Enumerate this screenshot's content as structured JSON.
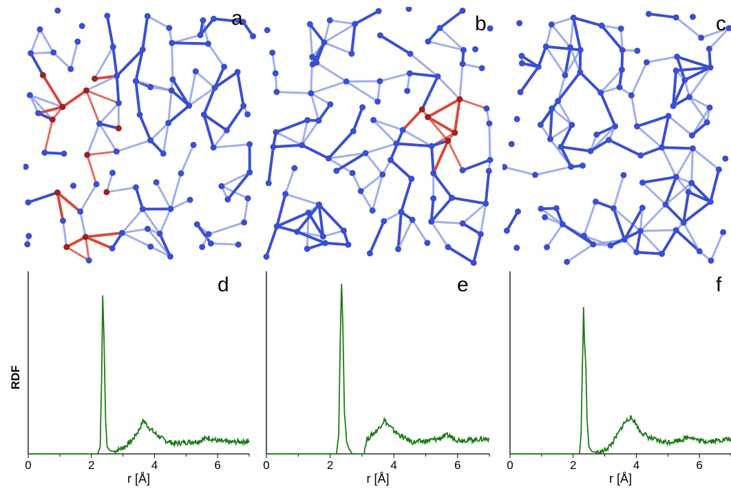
{
  "panels": {
    "a": "a",
    "b": "b",
    "c": "c",
    "d": "d",
    "e": "e",
    "f": "f"
  },
  "structure_colors": {
    "network": "#3a4fd0",
    "network_back": "#8a9ae8",
    "highlight": "#d84a3a",
    "highlight_dark": "#a02020"
  },
  "chart_data": [
    {
      "type": "line",
      "panel": "d",
      "xlabel": "r [Å]",
      "ylabel": "RDF",
      "xlim": [
        0,
        7
      ],
      "xticks": [
        "0",
        "2",
        "4",
        "6"
      ],
      "color": "#1a7a14",
      "grid": false,
      "series": [
        {
          "x": [
            0,
            2.2,
            2.28,
            2.33,
            2.36,
            2.4,
            2.45,
            2.5,
            2.58,
            2.7,
            2.9,
            3.1,
            3.3,
            3.5,
            3.65,
            3.75,
            3.85,
            4.0,
            4.3,
            4.6,
            5.0,
            5.4,
            5.7,
            6.0,
            6.4,
            7.0
          ],
          "y": [
            0,
            0,
            0.3,
            3.5,
            6.8,
            5.0,
            1.5,
            0.3,
            0.15,
            0.1,
            0.2,
            0.35,
            0.6,
            1.0,
            1.45,
            1.25,
            1.1,
            0.9,
            0.6,
            0.45,
            0.5,
            0.55,
            0.7,
            0.55,
            0.5,
            0.55
          ]
        }
      ]
    },
    {
      "type": "line",
      "panel": "e",
      "xlabel": "r [Å]",
      "ylabel": "",
      "xlim": [
        0,
        7
      ],
      "xticks": [
        "0",
        "2",
        "4",
        "6"
      ],
      "color": "#1a7a14",
      "grid": false,
      "series": [
        {
          "x": [
            0,
            2.2,
            2.27,
            2.32,
            2.36,
            2.4,
            2.45,
            2.52,
            2.6,
            2.7,
            2.9,
            3.05,
            3.15,
            3.3,
            3.5,
            3.7,
            3.85,
            4.0,
            4.3,
            4.6,
            5.0,
            5.4,
            5.7,
            6.0,
            6.4,
            7.0
          ],
          "y": [
            0,
            0,
            0.8,
            5.0,
            7.3,
            5.5,
            1.8,
            0.5,
            0.2,
            0,
            0,
            0,
            0.6,
            0.8,
            1.05,
            1.45,
            1.2,
            1.0,
            0.7,
            0.5,
            0.55,
            0.65,
            0.8,
            0.6,
            0.6,
            0.65
          ]
        }
      ]
    },
    {
      "type": "line",
      "panel": "f",
      "xlabel": "r [Å]",
      "ylabel": "",
      "xlim": [
        0,
        7
      ],
      "xticks": [
        "0",
        "2",
        "4",
        "6"
      ],
      "color": "#1a7a14",
      "grid": false,
      "series": [
        {
          "x": [
            0,
            2.2,
            2.25,
            2.3,
            2.33,
            2.36,
            2.4,
            2.44,
            2.5,
            2.6,
            2.8,
            3.0,
            3.2,
            3.4,
            3.6,
            3.8,
            3.95,
            4.1,
            4.4,
            4.7,
            5.0,
            5.4,
            5.7,
            6.0,
            6.4,
            7.0
          ],
          "y": [
            0,
            0,
            0.8,
            4.3,
            6.3,
            4.8,
            3.8,
            1.5,
            0.3,
            0.1,
            0.05,
            0.15,
            0.4,
            0.8,
            1.3,
            1.55,
            1.4,
            1.0,
            0.7,
            0.55,
            0.5,
            0.6,
            0.75,
            0.55,
            0.55,
            0.65
          ]
        }
      ]
    }
  ]
}
